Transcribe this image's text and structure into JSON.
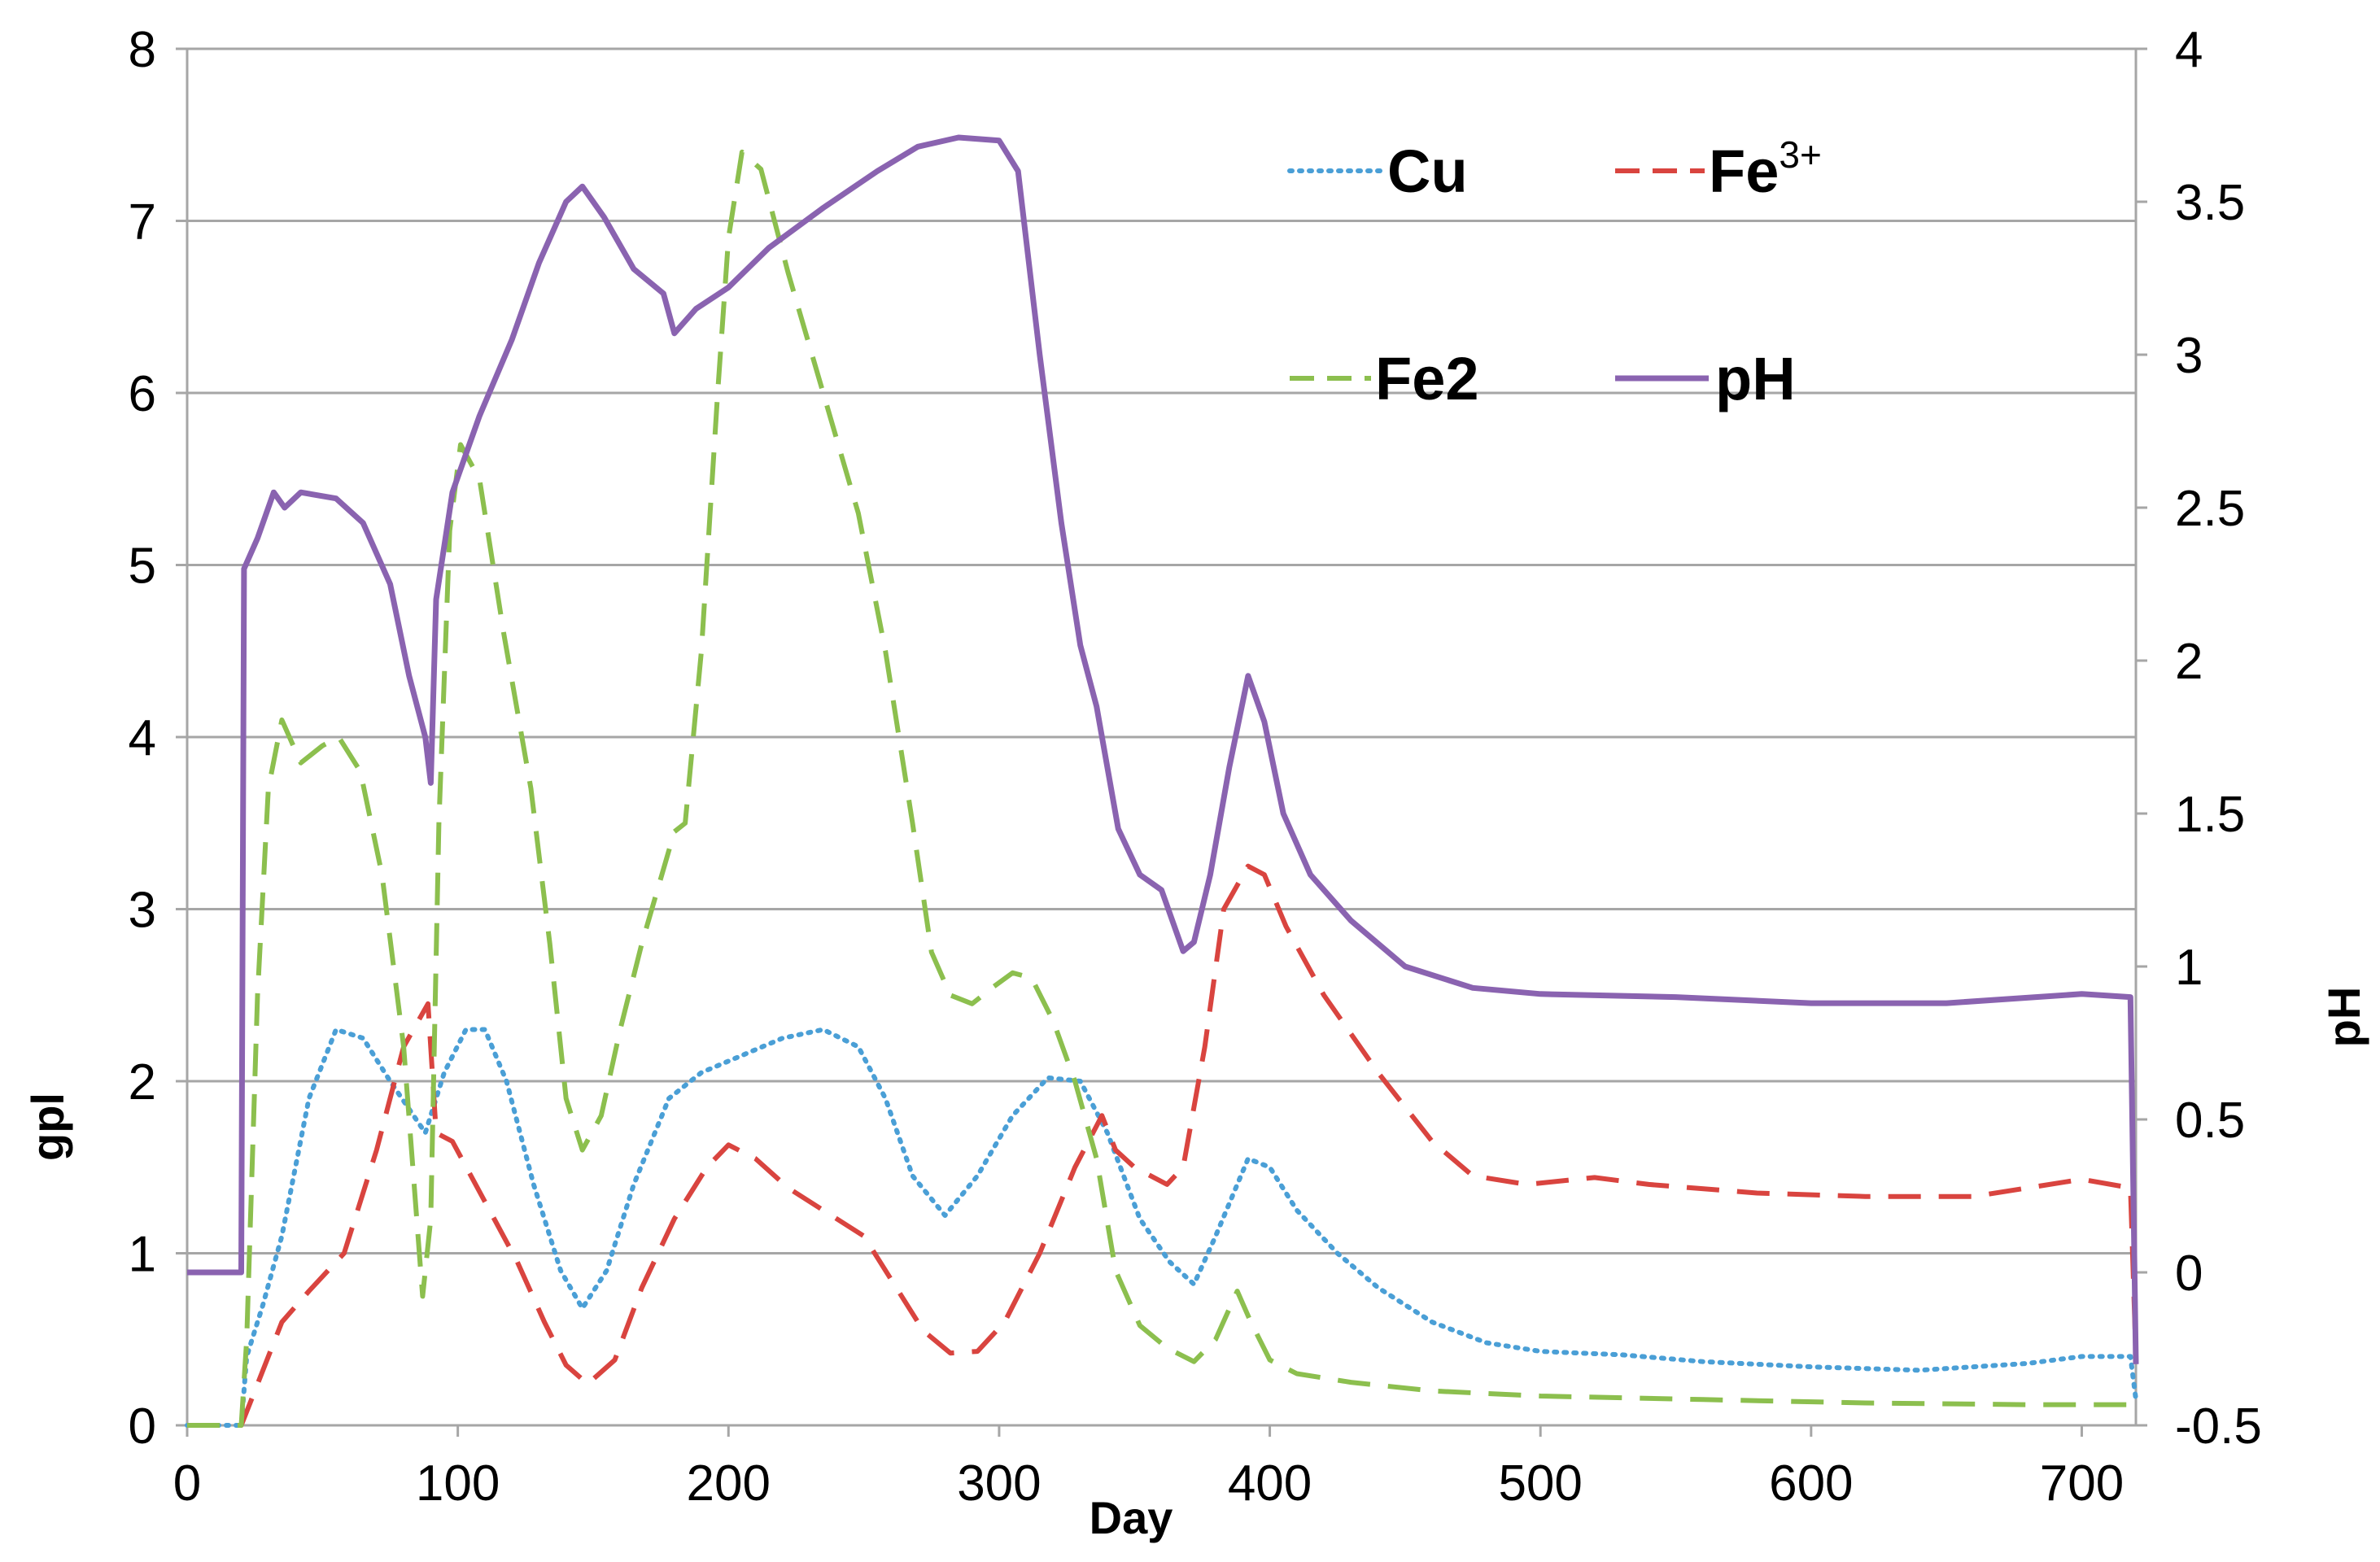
{
  "chart_data": {
    "type": "line",
    "title": "",
    "xlabel": "Day",
    "ylabel_left": "gpl",
    "ylabel_right": "pH",
    "xlim": [
      0,
      720
    ],
    "ylim_left": [
      0,
      8
    ],
    "ylim_right": [
      -0.5,
      4
    ],
    "x_ticks": [
      "0",
      "100",
      "200",
      "300",
      "400",
      "500",
      "600",
      "700"
    ],
    "y_left_ticks": [
      "0",
      "1",
      "2",
      "3",
      "4",
      "5",
      "6",
      "7",
      "8"
    ],
    "y_right_ticks": [
      "-0.5",
      "0",
      "0.5",
      "1",
      "1.5",
      "2",
      "2.5",
      "3",
      "3.5",
      "4"
    ],
    "grid": "horizontal",
    "legend_position": "top-right",
    "series": [
      {
        "name": "Cu",
        "axis": "left",
        "color": "#4a9fd6",
        "style": "dotted",
        "points": [
          [
            0,
            0
          ],
          [
            20,
            0
          ],
          [
            22,
            0.4
          ],
          [
            28,
            0.7
          ],
          [
            35,
            1.1
          ],
          [
            45,
            1.9
          ],
          [
            55,
            2.3
          ],
          [
            65,
            2.25
          ],
          [
            75,
            2.0
          ],
          [
            88,
            1.7
          ],
          [
            95,
            2.05
          ],
          [
            103,
            2.3
          ],
          [
            110,
            2.3
          ],
          [
            118,
            2.0
          ],
          [
            128,
            1.4
          ],
          [
            138,
            0.9
          ],
          [
            146,
            0.68
          ],
          [
            155,
            0.9
          ],
          [
            165,
            1.4
          ],
          [
            178,
            1.9
          ],
          [
            190,
            2.05
          ],
          [
            205,
            2.15
          ],
          [
            220,
            2.25
          ],
          [
            235,
            2.3
          ],
          [
            248,
            2.2
          ],
          [
            258,
            1.9
          ],
          [
            268,
            1.45
          ],
          [
            280,
            1.22
          ],
          [
            292,
            1.45
          ],
          [
            305,
            1.8
          ],
          [
            318,
            2.02
          ],
          [
            330,
            2.0
          ],
          [
            340,
            1.7
          ],
          [
            352,
            1.2
          ],
          [
            363,
            0.95
          ],
          [
            372,
            0.82
          ],
          [
            380,
            1.1
          ],
          [
            392,
            1.55
          ],
          [
            400,
            1.5
          ],
          [
            410,
            1.25
          ],
          [
            425,
            1.0
          ],
          [
            440,
            0.8
          ],
          [
            460,
            0.6
          ],
          [
            480,
            0.48
          ],
          [
            500,
            0.43
          ],
          [
            530,
            0.41
          ],
          [
            560,
            0.37
          ],
          [
            600,
            0.34
          ],
          [
            640,
            0.32
          ],
          [
            680,
            0.36
          ],
          [
            700,
            0.4
          ],
          [
            718,
            0.4
          ],
          [
            720,
            0.15
          ]
        ]
      },
      {
        "name": "Fe3+",
        "axis": "left",
        "color": "#d9443f",
        "style": "dashed",
        "points": [
          [
            0,
            0
          ],
          [
            20,
            0
          ],
          [
            25,
            0.2
          ],
          [
            35,
            0.6
          ],
          [
            45,
            0.78
          ],
          [
            58,
            1.0
          ],
          [
            70,
            1.6
          ],
          [
            80,
            2.2
          ],
          [
            89,
            2.45
          ],
          [
            92,
            1.7
          ],
          [
            98,
            1.65
          ],
          [
            110,
            1.3
          ],
          [
            122,
            0.95
          ],
          [
            132,
            0.6
          ],
          [
            140,
            0.35
          ],
          [
            148,
            0.24
          ],
          [
            158,
            0.38
          ],
          [
            168,
            0.8
          ],
          [
            180,
            1.2
          ],
          [
            192,
            1.5
          ],
          [
            200,
            1.63
          ],
          [
            210,
            1.55
          ],
          [
            222,
            1.38
          ],
          [
            235,
            1.25
          ],
          [
            250,
            1.1
          ],
          [
            262,
            0.8
          ],
          [
            272,
            0.55
          ],
          [
            282,
            0.42
          ],
          [
            292,
            0.43
          ],
          [
            302,
            0.6
          ],
          [
            315,
            1.0
          ],
          [
            328,
            1.5
          ],
          [
            338,
            1.8
          ],
          [
            343,
            1.6
          ],
          [
            350,
            1.5
          ],
          [
            362,
            1.4
          ],
          [
            368,
            1.5
          ],
          [
            376,
            2.2
          ],
          [
            383,
            3.0
          ],
          [
            392,
            3.25
          ],
          [
            398,
            3.2
          ],
          [
            406,
            2.9
          ],
          [
            420,
            2.5
          ],
          [
            440,
            2.05
          ],
          [
            460,
            1.65
          ],
          [
            475,
            1.45
          ],
          [
            495,
            1.4
          ],
          [
            520,
            1.44
          ],
          [
            540,
            1.4
          ],
          [
            580,
            1.35
          ],
          [
            620,
            1.33
          ],
          [
            660,
            1.33
          ],
          [
            700,
            1.43
          ],
          [
            718,
            1.38
          ],
          [
            720,
            0.4
          ]
        ]
      },
      {
        "name": "Fe2",
        "axis": "left",
        "color": "#8cbf4e",
        "style": "dashed",
        "points": [
          [
            0,
            0
          ],
          [
            20,
            0
          ],
          [
            22,
            0.5
          ],
          [
            26,
            2.5
          ],
          [
            30,
            3.7
          ],
          [
            35,
            4.1
          ],
          [
            42,
            3.85
          ],
          [
            50,
            3.95
          ],
          [
            56,
            4.0
          ],
          [
            64,
            3.8
          ],
          [
            72,
            3.2
          ],
          [
            80,
            2.2
          ],
          [
            87,
            0.75
          ],
          [
            90,
            1.2
          ],
          [
            93,
            3.5
          ],
          [
            97,
            5.2
          ],
          [
            101,
            5.7
          ],
          [
            108,
            5.5
          ],
          [
            117,
            4.6
          ],
          [
            127,
            3.7
          ],
          [
            134,
            2.8
          ],
          [
            140,
            1.9
          ],
          [
            146,
            1.6
          ],
          [
            153,
            1.8
          ],
          [
            160,
            2.3
          ],
          [
            168,
            2.8
          ],
          [
            180,
            3.45
          ],
          [
            184,
            3.5
          ],
          [
            190,
            4.5
          ],
          [
            196,
            6.0
          ],
          [
            200,
            6.9
          ],
          [
            205,
            7.4
          ],
          [
            212,
            7.3
          ],
          [
            222,
            6.7
          ],
          [
            235,
            6.0
          ],
          [
            248,
            5.3
          ],
          [
            258,
            4.5
          ],
          [
            268,
            3.5
          ],
          [
            275,
            2.75
          ],
          [
            282,
            2.5
          ],
          [
            290,
            2.45
          ],
          [
            298,
            2.55
          ],
          [
            305,
            2.63
          ],
          [
            312,
            2.6
          ],
          [
            320,
            2.35
          ],
          [
            328,
            2.0
          ],
          [
            336,
            1.55
          ],
          [
            343,
            0.9
          ],
          [
            352,
            0.58
          ],
          [
            362,
            0.45
          ],
          [
            372,
            0.37
          ],
          [
            380,
            0.5
          ],
          [
            388,
            0.78
          ],
          [
            393,
            0.6
          ],
          [
            400,
            0.38
          ],
          [
            410,
            0.3
          ],
          [
            430,
            0.25
          ],
          [
            460,
            0.2
          ],
          [
            500,
            0.17
          ],
          [
            560,
            0.15
          ],
          [
            620,
            0.13
          ],
          [
            680,
            0.12
          ],
          [
            718,
            0.12
          ],
          [
            720,
            0.05
          ]
        ]
      },
      {
        "name": "pH",
        "axis": "right",
        "color": "#8a63b0",
        "style": "solid",
        "points": [
          [
            0,
            0
          ],
          [
            20,
            0
          ],
          [
            21,
            2.3
          ],
          [
            26,
            2.4
          ],
          [
            32,
            2.55
          ],
          [
            36,
            2.5
          ],
          [
            42,
            2.55
          ],
          [
            55,
            2.53
          ],
          [
            65,
            2.45
          ],
          [
            75,
            2.25
          ],
          [
            82,
            1.95
          ],
          [
            88,
            1.75
          ],
          [
            90,
            1.6
          ],
          [
            92,
            2.2
          ],
          [
            98,
            2.55
          ],
          [
            108,
            2.8
          ],
          [
            120,
            3.05
          ],
          [
            130,
            3.3
          ],
          [
            140,
            3.5
          ],
          [
            146,
            3.55
          ],
          [
            154,
            3.45
          ],
          [
            165,
            3.28
          ],
          [
            176,
            3.2
          ],
          [
            180,
            3.07
          ],
          [
            188,
            3.15
          ],
          [
            200,
            3.22
          ],
          [
            215,
            3.35
          ],
          [
            235,
            3.48
          ],
          [
            255,
            3.6
          ],
          [
            270,
            3.68
          ],
          [
            285,
            3.71
          ],
          [
            300,
            3.7
          ],
          [
            307,
            3.6
          ],
          [
            315,
            3.0
          ],
          [
            323,
            2.45
          ],
          [
            330,
            2.05
          ],
          [
            336,
            1.85
          ],
          [
            344,
            1.45
          ],
          [
            352,
            1.3
          ],
          [
            360,
            1.25
          ],
          [
            368,
            1.05
          ],
          [
            372,
            1.08
          ],
          [
            378,
            1.3
          ],
          [
            385,
            1.65
          ],
          [
            392,
            1.95
          ],
          [
            398,
            1.8
          ],
          [
            405,
            1.5
          ],
          [
            415,
            1.3
          ],
          [
            430,
            1.15
          ],
          [
            450,
            1.0
          ],
          [
            475,
            0.93
          ],
          [
            500,
            0.91
          ],
          [
            550,
            0.9
          ],
          [
            600,
            0.88
          ],
          [
            650,
            0.88
          ],
          [
            700,
            0.91
          ],
          [
            718,
            0.9
          ],
          [
            720,
            -0.3
          ]
        ]
      }
    ],
    "legend": [
      {
        "series": "Cu",
        "label": "Cu",
        "sup": ""
      },
      {
        "series": "Fe3+",
        "label": "Fe",
        "sup": "3+"
      },
      {
        "series": "Fe2",
        "label": "Fe2",
        "sup": ""
      },
      {
        "series": "pH",
        "label": "pH",
        "sup": ""
      }
    ]
  }
}
